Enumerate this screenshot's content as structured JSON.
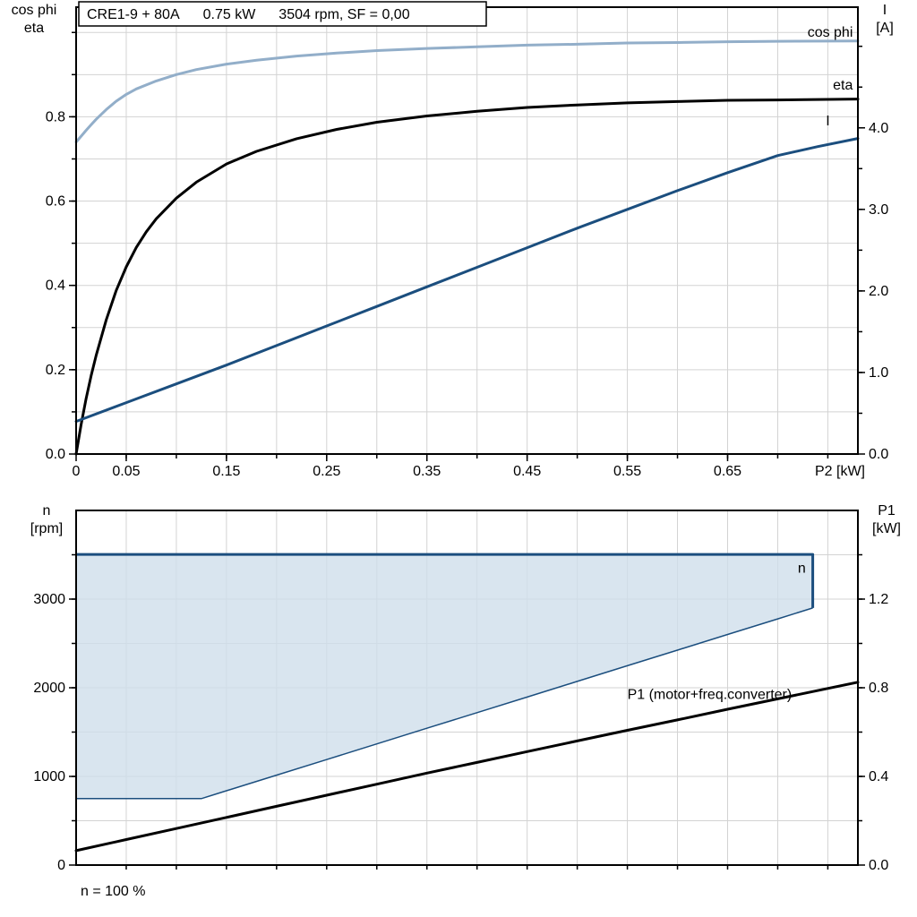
{
  "colors": {
    "cos_phi": "#92AEC9",
    "current": "#1B4E7E",
    "eta": "#000000",
    "p1": "#000000",
    "region_fill": "#CFDEEB",
    "region_line": "#1B4E7E",
    "grid": "#D3D3D3",
    "axis": "#000000"
  },
  "chart_data": [
    {
      "type": "line",
      "title": "CRE1-9 + 80A  0.75 kW  3504 rpm, SF = 0,00",
      "title_parts": [
        "CRE1-9 + 80A",
        "0.75 kW",
        "3504 rpm, SF = 0,00"
      ],
      "x_axis_label": "P2 [kW]",
      "left_axis_title": [
        "cos phi",
        "eta"
      ],
      "right_axis_title": [
        "I",
        "[A]"
      ],
      "xlim": [
        0,
        0.78
      ],
      "x_grid_step": 0.05,
      "x_ticks": [
        {
          "v": 0,
          "label": "0"
        },
        {
          "v": 0.05,
          "label": "0.05"
        },
        {
          "v": 0.15,
          "label": "0.15"
        },
        {
          "v": 0.25,
          "label": "0.25"
        },
        {
          "v": 0.35,
          "label": "0.35"
        },
        {
          "v": 0.45,
          "label": "0.45"
        },
        {
          "v": 0.55,
          "label": "0.55"
        },
        {
          "v": 0.65,
          "label": "0.65"
        }
      ],
      "left_axis": {
        "lim": [
          0,
          1.06
        ],
        "grid_step": 0.1,
        "tick_step": 0.1,
        "ticks": [
          {
            "v": 0,
            "label": "0.0"
          },
          {
            "v": 0.2,
            "label": "0.2"
          },
          {
            "v": 0.4,
            "label": "0.4"
          },
          {
            "v": 0.6,
            "label": "0.6"
          },
          {
            "v": 0.8,
            "label": "0.8"
          }
        ]
      },
      "right_axis": {
        "lim": [
          0,
          5.48
        ],
        "tick_step": 0.5,
        "ticks": [
          {
            "v": 0,
            "label": "0.0"
          },
          {
            "v": 1,
            "label": "1.0"
          },
          {
            "v": 2,
            "label": "2.0"
          },
          {
            "v": 3,
            "label": "3.0"
          },
          {
            "v": 4,
            "label": "4.0"
          }
        ]
      },
      "series": [
        {
          "name": "cos phi",
          "axis": "left",
          "color": "#92AEC9",
          "width": 3,
          "label": {
            "text": "cos phi",
            "x": 0.775,
            "y": 0.99,
            "anchor": "end"
          },
          "points": [
            [
              0,
              0.74
            ],
            [
              0.005,
              0.754
            ],
            [
              0.01,
              0.768
            ],
            [
              0.015,
              0.781
            ],
            [
              0.02,
              0.794
            ],
            [
              0.03,
              0.817
            ],
            [
              0.04,
              0.837
            ],
            [
              0.05,
              0.853
            ],
            [
              0.06,
              0.866
            ],
            [
              0.08,
              0.885
            ],
            [
              0.1,
              0.9
            ],
            [
              0.12,
              0.912
            ],
            [
              0.15,
              0.925
            ],
            [
              0.18,
              0.934
            ],
            [
              0.22,
              0.944
            ],
            [
              0.26,
              0.951
            ],
            [
              0.3,
              0.957
            ],
            [
              0.35,
              0.962
            ],
            [
              0.4,
              0.966
            ],
            [
              0.45,
              0.97
            ],
            [
              0.5,
              0.972
            ],
            [
              0.55,
              0.975
            ],
            [
              0.6,
              0.976
            ],
            [
              0.65,
              0.978
            ],
            [
              0.7,
              0.979
            ],
            [
              0.78,
              0.98
            ]
          ]
        },
        {
          "name": "eta",
          "axis": "left",
          "color": "#000000",
          "width": 3,
          "label": {
            "text": "eta",
            "x": 0.775,
            "y": 0.865,
            "anchor": "end"
          },
          "points": [
            [
              0,
              0
            ],
            [
              0.005,
              0.07
            ],
            [
              0.01,
              0.132
            ],
            [
              0.015,
              0.186
            ],
            [
              0.02,
              0.234
            ],
            [
              0.03,
              0.318
            ],
            [
              0.04,
              0.388
            ],
            [
              0.05,
              0.444
            ],
            [
              0.06,
              0.49
            ],
            [
              0.07,
              0.527
            ],
            [
              0.08,
              0.558
            ],
            [
              0.1,
              0.607
            ],
            [
              0.12,
              0.645
            ],
            [
              0.15,
              0.688
            ],
            [
              0.18,
              0.718
            ],
            [
              0.22,
              0.748
            ],
            [
              0.26,
              0.77
            ],
            [
              0.3,
              0.787
            ],
            [
              0.35,
              0.802
            ],
            [
              0.4,
              0.813
            ],
            [
              0.45,
              0.822
            ],
            [
              0.5,
              0.828
            ],
            [
              0.55,
              0.833
            ],
            [
              0.6,
              0.836
            ],
            [
              0.65,
              0.839
            ],
            [
              0.7,
              0.84
            ],
            [
              0.78,
              0.842
            ]
          ]
        },
        {
          "name": "I",
          "axis": "right",
          "color": "#1B4E7E",
          "width": 3,
          "label": {
            "text": "I",
            "x": 0.75,
            "y": 4.03,
            "anchor": "middle"
          },
          "points": [
            [
              0,
              0.4
            ],
            [
              0.05,
              0.63
            ],
            [
              0.1,
              0.86
            ],
            [
              0.15,
              1.09
            ],
            [
              0.2,
              1.33
            ],
            [
              0.25,
              1.57
            ],
            [
              0.3,
              1.81
            ],
            [
              0.35,
              2.05
            ],
            [
              0.4,
              2.29
            ],
            [
              0.45,
              2.53
            ],
            [
              0.5,
              2.77
            ],
            [
              0.55,
              3.0
            ],
            [
              0.6,
              3.23
            ],
            [
              0.65,
              3.45
            ],
            [
              0.7,
              3.66
            ],
            [
              0.74,
              3.77
            ],
            [
              0.78,
              3.87
            ]
          ]
        }
      ]
    },
    {
      "type": "area",
      "left_axis_title": [
        "n",
        "[rpm]"
      ],
      "right_axis_title": [
        "P1",
        "[kW]"
      ],
      "footnote": "n = 100 %",
      "xlim": [
        0,
        0.78
      ],
      "x_grid_step": 0.05,
      "x_ticks": [],
      "left_axis": {
        "lim": [
          0,
          4000
        ],
        "grid_step": 500,
        "tick_step": 500,
        "ticks": [
          {
            "v": 0,
            "label": "0"
          },
          {
            "v": 1000,
            "label": "1000"
          },
          {
            "v": 2000,
            "label": "2000"
          },
          {
            "v": 3000,
            "label": "3000"
          }
        ]
      },
      "right_axis": {
        "lim": [
          0,
          1.6
        ],
        "tick_step": 0.2,
        "ticks": [
          {
            "v": 0,
            "label": "0.0"
          },
          {
            "v": 0.4,
            "label": "0.4"
          },
          {
            "v": 0.8,
            "label": "0.8"
          },
          {
            "v": 1.2,
            "label": "1.2"
          }
        ]
      },
      "region": {
        "name": "speed-operating-range",
        "max_speed_rpm": 3504,
        "min_speed_rpm": 750,
        "fill": "#CFDEEB",
        "fill_opacity": 0.8,
        "line_color": "#1B4E7E",
        "label": {
          "text": "n",
          "x": 0.728,
          "y": 3300,
          "anchor": "end"
        },
        "upper": [
          [
            0,
            3504
          ],
          [
            0.735,
            3504
          ],
          [
            0.735,
            2900
          ]
        ],
        "lower": [
          [
            0,
            750
          ],
          [
            0.125,
            750
          ],
          [
            0.15,
            838
          ],
          [
            0.2,
            1014
          ],
          [
            0.25,
            1190
          ],
          [
            0.3,
            1367
          ],
          [
            0.35,
            1543
          ],
          [
            0.4,
            1719
          ],
          [
            0.45,
            1895
          ],
          [
            0.5,
            2072
          ],
          [
            0.55,
            2248
          ],
          [
            0.6,
            2424
          ],
          [
            0.65,
            2601
          ],
          [
            0.7,
            2777
          ],
          [
            0.735,
            2900
          ]
        ]
      },
      "series": [
        {
          "name": "P1 (motor+freq.converter)",
          "axis": "right",
          "color": "#000000",
          "width": 3,
          "label": {
            "text": "P1 (motor+freq.converter)",
            "x": 0.55,
            "y": 0.75,
            "anchor": "start",
            "color": "#000000"
          },
          "points": [
            [
              0,
              0.065
            ],
            [
              0.05,
              0.115
            ],
            [
              0.1,
              0.165
            ],
            [
              0.15,
              0.215
            ],
            [
              0.2,
              0.265
            ],
            [
              0.25,
              0.315
            ],
            [
              0.3,
              0.365
            ],
            [
              0.35,
              0.415
            ],
            [
              0.4,
              0.463
            ],
            [
              0.45,
              0.512
            ],
            [
              0.5,
              0.56
            ],
            [
              0.55,
              0.608
            ],
            [
              0.6,
              0.655
            ],
            [
              0.65,
              0.703
            ],
            [
              0.7,
              0.75
            ],
            [
              0.78,
              0.825
            ]
          ]
        }
      ]
    }
  ]
}
